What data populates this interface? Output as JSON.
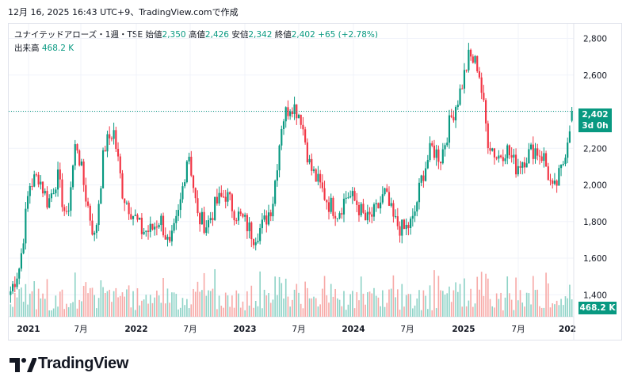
{
  "header": {
    "timestamp": "12月 16, 2025 16:43 UTC+9、TradingView.comで作成"
  },
  "legend": {
    "symbol": "ユナイテッドアローズ・1週・TSE",
    "open_label": "始値",
    "open_value": "2,350",
    "high_label": "高値",
    "high_value": "2,426",
    "low_label": "安値",
    "low_value": "2,342",
    "close_label": "終値",
    "close_value": "2,402",
    "change": "+65 (+2.78%)",
    "volume_label": "出来高",
    "volume_value": "468.2 K"
  },
  "price_badge": {
    "price": "2,402",
    "countdown": "3d 0h"
  },
  "volume_badge": {
    "value": "468.2 K"
  },
  "branding": {
    "name": "TradingView"
  },
  "colors": {
    "up": "#089981",
    "down": "#f23645",
    "up_vol": "#8fd3c7",
    "down_vol": "#f7a9a7",
    "grid": "#f0f3fa",
    "axis_text": "#131722"
  },
  "chart_data": {
    "type": "candlestick",
    "title": "ユナイテッドアローズ・1週・TSE",
    "interval": "1週",
    "ylim": [
      1280,
      2880
    ],
    "y_ticks": [
      "1,400",
      "1,600",
      "1,800",
      "2,000",
      "2,200",
      "2,400",
      "2,600",
      "2,800"
    ],
    "x_ticks": [
      "2021",
      "7月",
      "2022",
      "7月",
      "2023",
      "7月",
      "2024",
      "7月",
      "2025",
      "7月",
      "202"
    ],
    "last": {
      "open": 2350,
      "high": 2426,
      "low": 2342,
      "close": 2402,
      "change": 65,
      "change_pct": 2.78,
      "volume_k": 468.2
    },
    "approx_close_path": [
      [
        "2020-12",
        1420
      ],
      [
        "2021-01",
        1560
      ],
      [
        "2021-02",
        2000
      ],
      [
        "2021-03",
        2050
      ],
      [
        "2021-04",
        1900
      ],
      [
        "2021-05",
        2050
      ],
      [
        "2021-06",
        1800
      ],
      [
        "2021-07",
        2250
      ],
      [
        "2021-08",
        1950
      ],
      [
        "2021-09",
        1700
      ],
      [
        "2021-10",
        2200
      ],
      [
        "2021-11",
        2300
      ],
      [
        "2021-12",
        1950
      ],
      [
        "2022-01",
        1850
      ],
      [
        "2022-02",
        1750
      ],
      [
        "2022-03",
        1750
      ],
      [
        "2022-04",
        1820
      ],
      [
        "2022-05",
        1650
      ],
      [
        "2022-06",
        1850
      ],
      [
        "2022-07",
        2200
      ],
      [
        "2022-08",
        1820
      ],
      [
        "2022-09",
        1780
      ],
      [
        "2022-10",
        1900
      ],
      [
        "2022-11",
        1950
      ],
      [
        "2022-12",
        1850
      ],
      [
        "2023-01",
        1800
      ],
      [
        "2023-02",
        1720
      ],
      [
        "2023-03",
        1780
      ],
      [
        "2023-04",
        1900
      ],
      [
        "2023-05",
        2350
      ],
      [
        "2023-06",
        2450
      ],
      [
        "2023-07",
        2380
      ],
      [
        "2023-08",
        2100
      ],
      [
        "2023-09",
        2000
      ],
      [
        "2023-10",
        1900
      ],
      [
        "2023-11",
        1850
      ],
      [
        "2023-12",
        1950
      ],
      [
        "2024-01",
        1900
      ],
      [
        "2024-02",
        1800
      ],
      [
        "2024-03",
        1850
      ],
      [
        "2024-04",
        1950
      ],
      [
        "2024-05",
        1800
      ],
      [
        "2024-06",
        1750
      ],
      [
        "2024-07",
        1800
      ],
      [
        "2024-08",
        2050
      ],
      [
        "2024-09",
        2200
      ],
      [
        "2024-10",
        2150
      ],
      [
        "2024-11",
        2350
      ],
      [
        "2024-12",
        2500
      ],
      [
        "2025-01",
        2700
      ],
      [
        "2025-02",
        2650
      ],
      [
        "2025-03",
        2250
      ],
      [
        "2025-04",
        2150
      ],
      [
        "2025-05",
        2200
      ],
      [
        "2025-06",
        2100
      ],
      [
        "2025-07",
        2150
      ],
      [
        "2025-08",
        2200
      ],
      [
        "2025-09",
        2150
      ],
      [
        "2025-10",
        1950
      ],
      [
        "2025-11",
        2100
      ],
      [
        "2025-12",
        2402
      ]
    ]
  }
}
